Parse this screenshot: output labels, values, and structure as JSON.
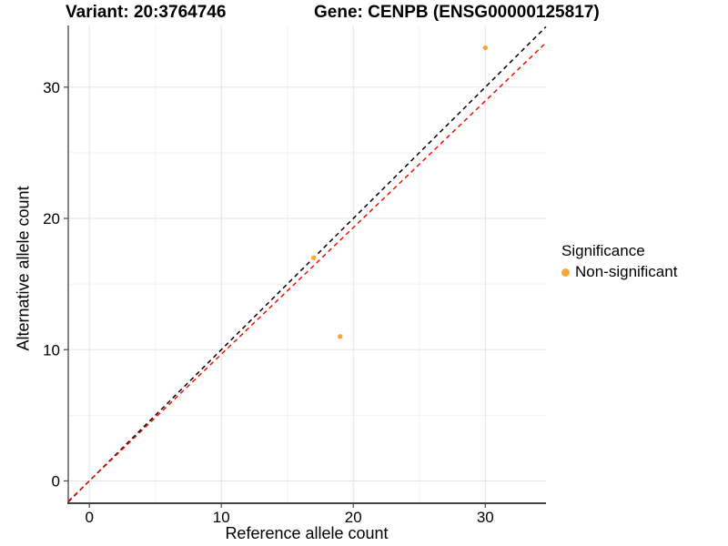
{
  "chart_data": {
    "type": "scatter",
    "titles": {
      "variant": "Variant: 20:3764746",
      "gene": "Gene: CENPB (ENSG00000125817)"
    },
    "xlabel": "Reference allele count",
    "ylabel": "Alternative allele count",
    "xlim": [
      -1.6,
      34.6
    ],
    "ylim": [
      -1.7,
      34.7
    ],
    "x_ticks": [
      0,
      10,
      20,
      30
    ],
    "y_ticks": [
      0,
      10,
      20,
      30
    ],
    "x_minor_ticks": [
      5,
      15,
      25
    ],
    "y_minor_ticks": [
      5,
      15,
      25
    ],
    "grid": "on",
    "points": [
      {
        "x": 17,
        "y": 17,
        "significance": "Non-significant"
      },
      {
        "x": 19,
        "y": 11,
        "significance": "Non-significant"
      },
      {
        "x": 30,
        "y": 33,
        "significance": "Non-significant"
      }
    ],
    "point_color": "#F8A63C",
    "lines": [
      {
        "name": "identity",
        "slope": 1,
        "intercept": 0,
        "color": "#000000",
        "style": "dashed"
      },
      {
        "name": "fit",
        "slope": 0.965,
        "intercept": 0,
        "color": "#EE1100",
        "style": "dashed"
      }
    ],
    "legend": {
      "title": "Significance",
      "position": "right",
      "items": [
        {
          "label": "Non-significant",
          "color": "#F8A63C"
        }
      ]
    },
    "colors": {
      "grid_major": "#e4e4e4",
      "grid_minor": "#f2f2f2",
      "axis_line": "#444444"
    }
  }
}
